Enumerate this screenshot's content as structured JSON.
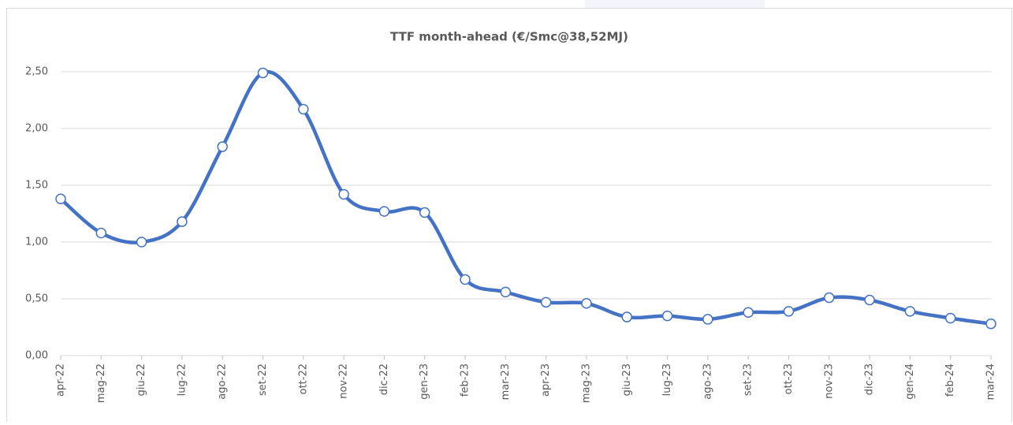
{
  "chart_data": {
    "type": "line",
    "title": "TTF month-ahead (€/Smc@38,52MJ)",
    "categories": [
      "apr-22",
      "mag-22",
      "giu-22",
      "lug-22",
      "ago-22",
      "set-22",
      "ott-22",
      "nov-22",
      "dic-22",
      "gen-23",
      "feb-23",
      "mar-23",
      "apr-23",
      "mag-23",
      "giu-23",
      "lug-23",
      "ago-23",
      "set-23",
      "ott-23",
      "nov-23",
      "dic-23",
      "gen-24",
      "feb-24",
      "mar-24"
    ],
    "series": [
      {
        "name": "TTF month-ahead",
        "color": "#4472c4",
        "values": [
          1.38,
          1.08,
          1.0,
          1.18,
          1.84,
          2.49,
          2.17,
          1.42,
          1.27,
          1.26,
          0.67,
          0.56,
          0.47,
          0.46,
          0.34,
          0.35,
          0.32,
          0.38,
          0.39,
          0.51,
          0.49,
          0.39,
          0.33,
          0.28
        ]
      }
    ],
    "ylim": [
      0,
      2.5
    ],
    "yticks": [
      {
        "value": 0,
        "label": "0,00"
      },
      {
        "value": 0.5,
        "label": "0,50"
      },
      {
        "value": 1,
        "label": "1,00"
      },
      {
        "value": 1.5,
        "label": "1,50"
      },
      {
        "value": 2,
        "label": "2,00"
      },
      {
        "value": 2.5,
        "label": "2,50"
      }
    ],
    "grid": true,
    "smooth": true
  }
}
